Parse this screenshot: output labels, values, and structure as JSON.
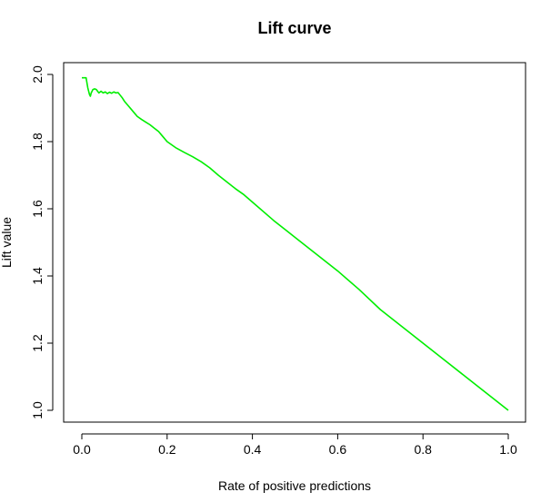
{
  "chart_data": {
    "type": "line",
    "title": "Lift curve",
    "xlabel": "Rate of positive predictions",
    "ylabel": "Lift value",
    "xlim": [
      0.0,
      1.0
    ],
    "ylim": [
      1.0,
      2.0
    ],
    "grid": false,
    "xticks": [
      {
        "value": 0.0,
        "label": "0.0"
      },
      {
        "value": 0.2,
        "label": "0.2"
      },
      {
        "value": 0.4,
        "label": "0.4"
      },
      {
        "value": 0.6,
        "label": "0.6"
      },
      {
        "value": 0.8,
        "label": "0.8"
      },
      {
        "value": 1.0,
        "label": "1.0"
      }
    ],
    "yticks": [
      {
        "value": 1.0,
        "label": "1.0"
      },
      {
        "value": 1.2,
        "label": "1.2"
      },
      {
        "value": 1.4,
        "label": "1.4"
      },
      {
        "value": 1.6,
        "label": "1.6"
      },
      {
        "value": 1.8,
        "label": "1.8"
      },
      {
        "value": 2.0,
        "label": "2.0"
      }
    ],
    "series": [
      {
        "color": "#00ee00",
        "x": [
          0.0,
          0.008,
          0.01,
          0.014,
          0.018,
          0.02,
          0.022,
          0.026,
          0.03,
          0.034,
          0.04,
          0.045,
          0.05,
          0.055,
          0.06,
          0.065,
          0.07,
          0.075,
          0.08,
          0.085,
          0.09,
          0.095,
          0.1,
          0.11,
          0.12,
          0.13,
          0.14,
          0.15,
          0.16,
          0.17,
          0.18,
          0.19,
          0.2,
          0.22,
          0.24,
          0.26,
          0.28,
          0.3,
          0.32,
          0.34,
          0.36,
          0.38,
          0.4,
          0.45,
          0.5,
          0.55,
          0.6,
          0.65,
          0.7,
          0.75,
          0.8,
          0.85,
          0.9,
          0.95,
          1.0
        ],
        "y": [
          1.99,
          1.99,
          1.99,
          1.96,
          1.94,
          1.935,
          1.945,
          1.955,
          1.957,
          1.955,
          1.945,
          1.95,
          1.945,
          1.948,
          1.943,
          1.947,
          1.944,
          1.948,
          1.945,
          1.946,
          1.938,
          1.93,
          1.92,
          1.905,
          1.89,
          1.875,
          1.866,
          1.858,
          1.85,
          1.84,
          1.83,
          1.815,
          1.8,
          1.782,
          1.768,
          1.755,
          1.74,
          1.722,
          1.7,
          1.68,
          1.66,
          1.642,
          1.62,
          1.565,
          1.515,
          1.465,
          1.415,
          1.36,
          1.3,
          1.25,
          1.2,
          1.15,
          1.1,
          1.05,
          1.0
        ]
      }
    ]
  }
}
